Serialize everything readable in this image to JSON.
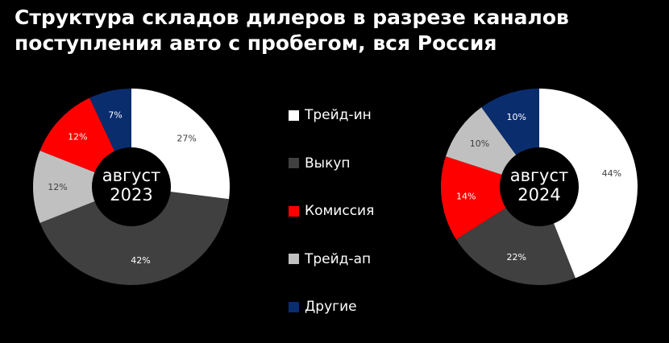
{
  "title": "Структура складов дилеров в разрезе каналов поступления авто с пробегом, вся Россия",
  "legend": [
    {
      "label": "Трейд-ин",
      "color": "#ffffff"
    },
    {
      "label": "Выкуп",
      "color": "#404040"
    },
    {
      "label": "Комиссия",
      "color": "#ff0000"
    },
    {
      "label": "Трейд-ап",
      "color": "#c0c0c0"
    },
    {
      "label": "Другие",
      "color": "#0a2d6e"
    }
  ],
  "chart_data": [
    {
      "type": "pie",
      "center_label": [
        "август",
        "2023"
      ],
      "categories": [
        "Трейд-ин",
        "Выкуп",
        "Трейд-ап",
        "Комиссия",
        "Другие"
      ],
      "values": [
        27,
        42,
        12,
        12,
        7
      ],
      "labels": [
        "27%",
        "42%",
        "12%",
        "12%",
        "7%"
      ],
      "colors": [
        "#ffffff",
        "#404040",
        "#c0c0c0",
        "#ff0000",
        "#0a2d6e"
      ],
      "label_colors": [
        "#404040",
        "#ffffff",
        "#404040",
        "#ffffff",
        "#ffffff"
      ]
    },
    {
      "type": "pie",
      "center_label": [
        "август",
        "2024"
      ],
      "categories": [
        "Трейд-ин",
        "Выкуп",
        "Комиссия",
        "Трейд-ап",
        "Другие"
      ],
      "values": [
        44,
        22,
        14,
        10,
        10
      ],
      "labels": [
        "44%",
        "22%",
        "14%",
        "10%",
        "10%"
      ],
      "colors": [
        "#ffffff",
        "#404040",
        "#ff0000",
        "#c0c0c0",
        "#0a2d6e"
      ],
      "label_colors": [
        "#404040",
        "#ffffff",
        "#ffffff",
        "#404040",
        "#ffffff"
      ]
    }
  ]
}
